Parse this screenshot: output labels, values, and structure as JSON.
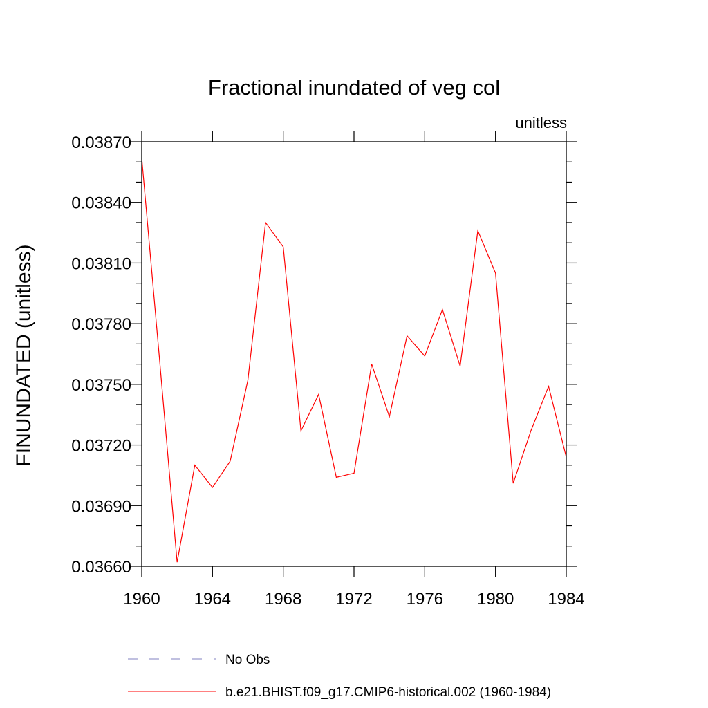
{
  "chart_data": {
    "type": "line",
    "title": "Fractional inundated of veg col",
    "units_label": "unitless",
    "xlabel": "",
    "ylabel": "FINUNDATED  (unitless)",
    "xlim": [
      1960,
      1984
    ],
    "ylim": [
      0.0366,
      0.0387
    ],
    "x_ticks": [
      1960,
      1964,
      1968,
      1972,
      1976,
      1980,
      1984
    ],
    "y_ticks": [
      "0.03660",
      "0.03690",
      "0.03720",
      "0.03750",
      "0.03780",
      "0.03810",
      "0.03840",
      "0.03870"
    ],
    "grid": false,
    "series": [
      {
        "name": "b.e21.BHIST.f09_g17.CMIP6-historical.002 (1960-1984)",
        "color": "#ff0000",
        "style": "solid",
        "x": [
          1960,
          1961,
          1962,
          1963,
          1964,
          1965,
          1966,
          1967,
          1968,
          1969,
          1970,
          1971,
          1972,
          1973,
          1974,
          1975,
          1976,
          1977,
          1978,
          1979,
          1980,
          1981,
          1982,
          1983,
          1984
        ],
        "values": [
          0.03862,
          0.03763,
          0.03662,
          0.0371,
          0.03699,
          0.03712,
          0.03752,
          0.0383,
          0.03818,
          0.03727,
          0.03745,
          0.03704,
          0.03706,
          0.0376,
          0.03734,
          0.03774,
          0.03764,
          0.03787,
          0.03759,
          0.03826,
          0.03805,
          0.03701,
          0.03727,
          0.03749,
          0.03714
        ]
      }
    ],
    "legend": [
      {
        "label": "No Obs",
        "color": "#8080c0",
        "style": "dashed"
      },
      {
        "label": "b.e21.BHIST.f09_g17.CMIP6-historical.002 (1960-1984)",
        "color": "#ff0000",
        "style": "solid"
      }
    ],
    "legend_position": "bottom"
  }
}
